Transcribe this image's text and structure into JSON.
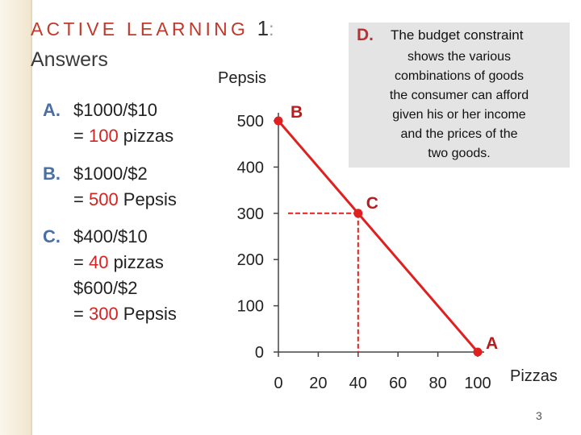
{
  "slide": {
    "title": "ACTIVE LEARNING",
    "title_number": "1",
    "title_colon": ":",
    "subtitle": "Answers",
    "page_number": "3"
  },
  "answers": [
    {
      "label": "A.",
      "line1": "$1000/$10",
      "line2_pre": "= ",
      "line2_num": "100",
      "line2_post": " pizzas"
    },
    {
      "label": "B.",
      "line1": "$1000/$2",
      "line2_pre": "= ",
      "line2_num": "500",
      "line2_post": " Pepsis"
    },
    {
      "label": "C.",
      "line1": "$400/$10",
      "line2_pre": "= ",
      "line2_num": "40",
      "line2_post": " pizzas",
      "line3": "$600/$2",
      "line4_pre": "= ",
      "line4_num": "300",
      "line4_post": " Pepsis"
    }
  ],
  "note": {
    "label": "D.",
    "head": "The budget constraint",
    "lines": [
      "shows the various",
      "combinations of goods",
      "the consumer can afford",
      "given his or her income",
      "and the prices of the",
      "two goods."
    ]
  },
  "chart_data": {
    "type": "line",
    "ylabel": "Pepsis",
    "xlabel": "Pizzas",
    "xlim": [
      0,
      100
    ],
    "ylim": [
      0,
      500
    ],
    "x_ticks": [
      "0",
      "20",
      "40",
      "60",
      "80",
      "100"
    ],
    "y_ticks": [
      "0",
      "100",
      "200",
      "300",
      "400",
      "500"
    ],
    "series": [
      {
        "x": [
          0,
          100
        ],
        "y": [
          500,
          0
        ]
      }
    ],
    "points": [
      {
        "label": "B",
        "x": 0,
        "y": 500
      },
      {
        "label": "C",
        "x": 40,
        "y": 300
      },
      {
        "label": "A",
        "x": 100,
        "y": 0
      }
    ],
    "colors": {
      "line": "#e02020",
      "axis": "#444444"
    }
  }
}
